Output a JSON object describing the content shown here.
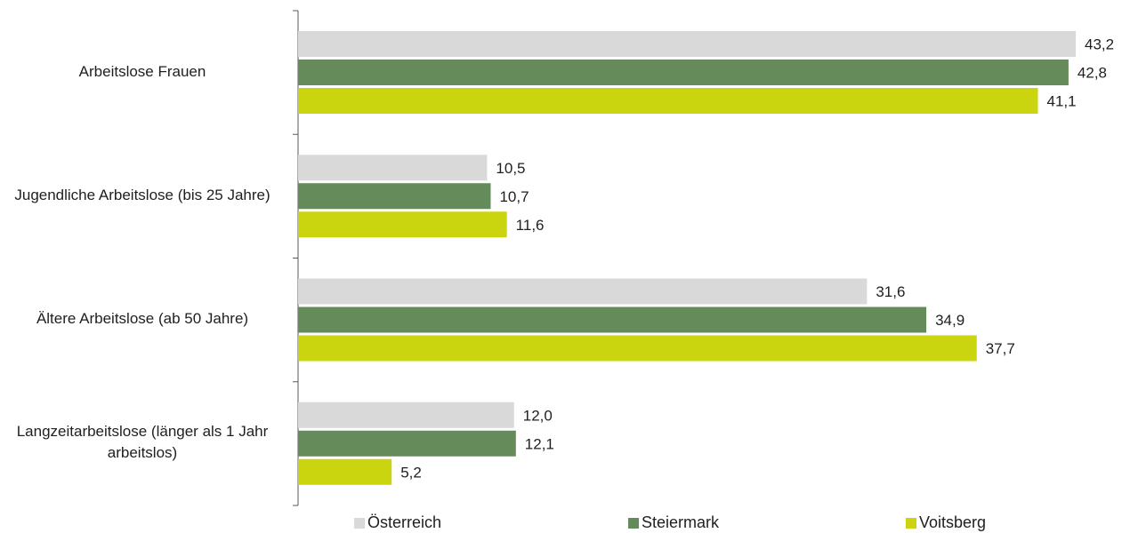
{
  "chart_data": {
    "type": "bar",
    "orientation": "horizontal",
    "categories": [
      "Arbeitslose Frauen",
      "Jugendliche Arbeitslose (bis 25 Jahre)",
      "Ältere Arbeitslose (ab 50 Jahre)",
      "Langzeitarbeitslose (länger als 1 Jahr arbeitslos)"
    ],
    "series": [
      {
        "name": "Österreich",
        "color": "#d9d9d9",
        "values": [
          43.2,
          10.5,
          31.6,
          12.0
        ],
        "labels": [
          "43,2",
          "10,5",
          "31,6",
          "12,0"
        ]
      },
      {
        "name": "Steiermark",
        "color": "#668b5a",
        "values": [
          42.8,
          10.7,
          34.9,
          12.1
        ],
        "labels": [
          "42,8",
          "10,7",
          "34,9",
          "12,1"
        ]
      },
      {
        "name": "Voitsberg",
        "color": "#cad40f",
        "values": [
          41.1,
          11.6,
          37.7,
          5.2
        ],
        "labels": [
          "41,1",
          "11,6",
          "37,7",
          "5,2"
        ]
      }
    ],
    "title": "",
    "xlabel": "",
    "ylabel": "",
    "xlim": [
      0,
      45
    ],
    "grid": false,
    "legend_position": "bottom"
  }
}
